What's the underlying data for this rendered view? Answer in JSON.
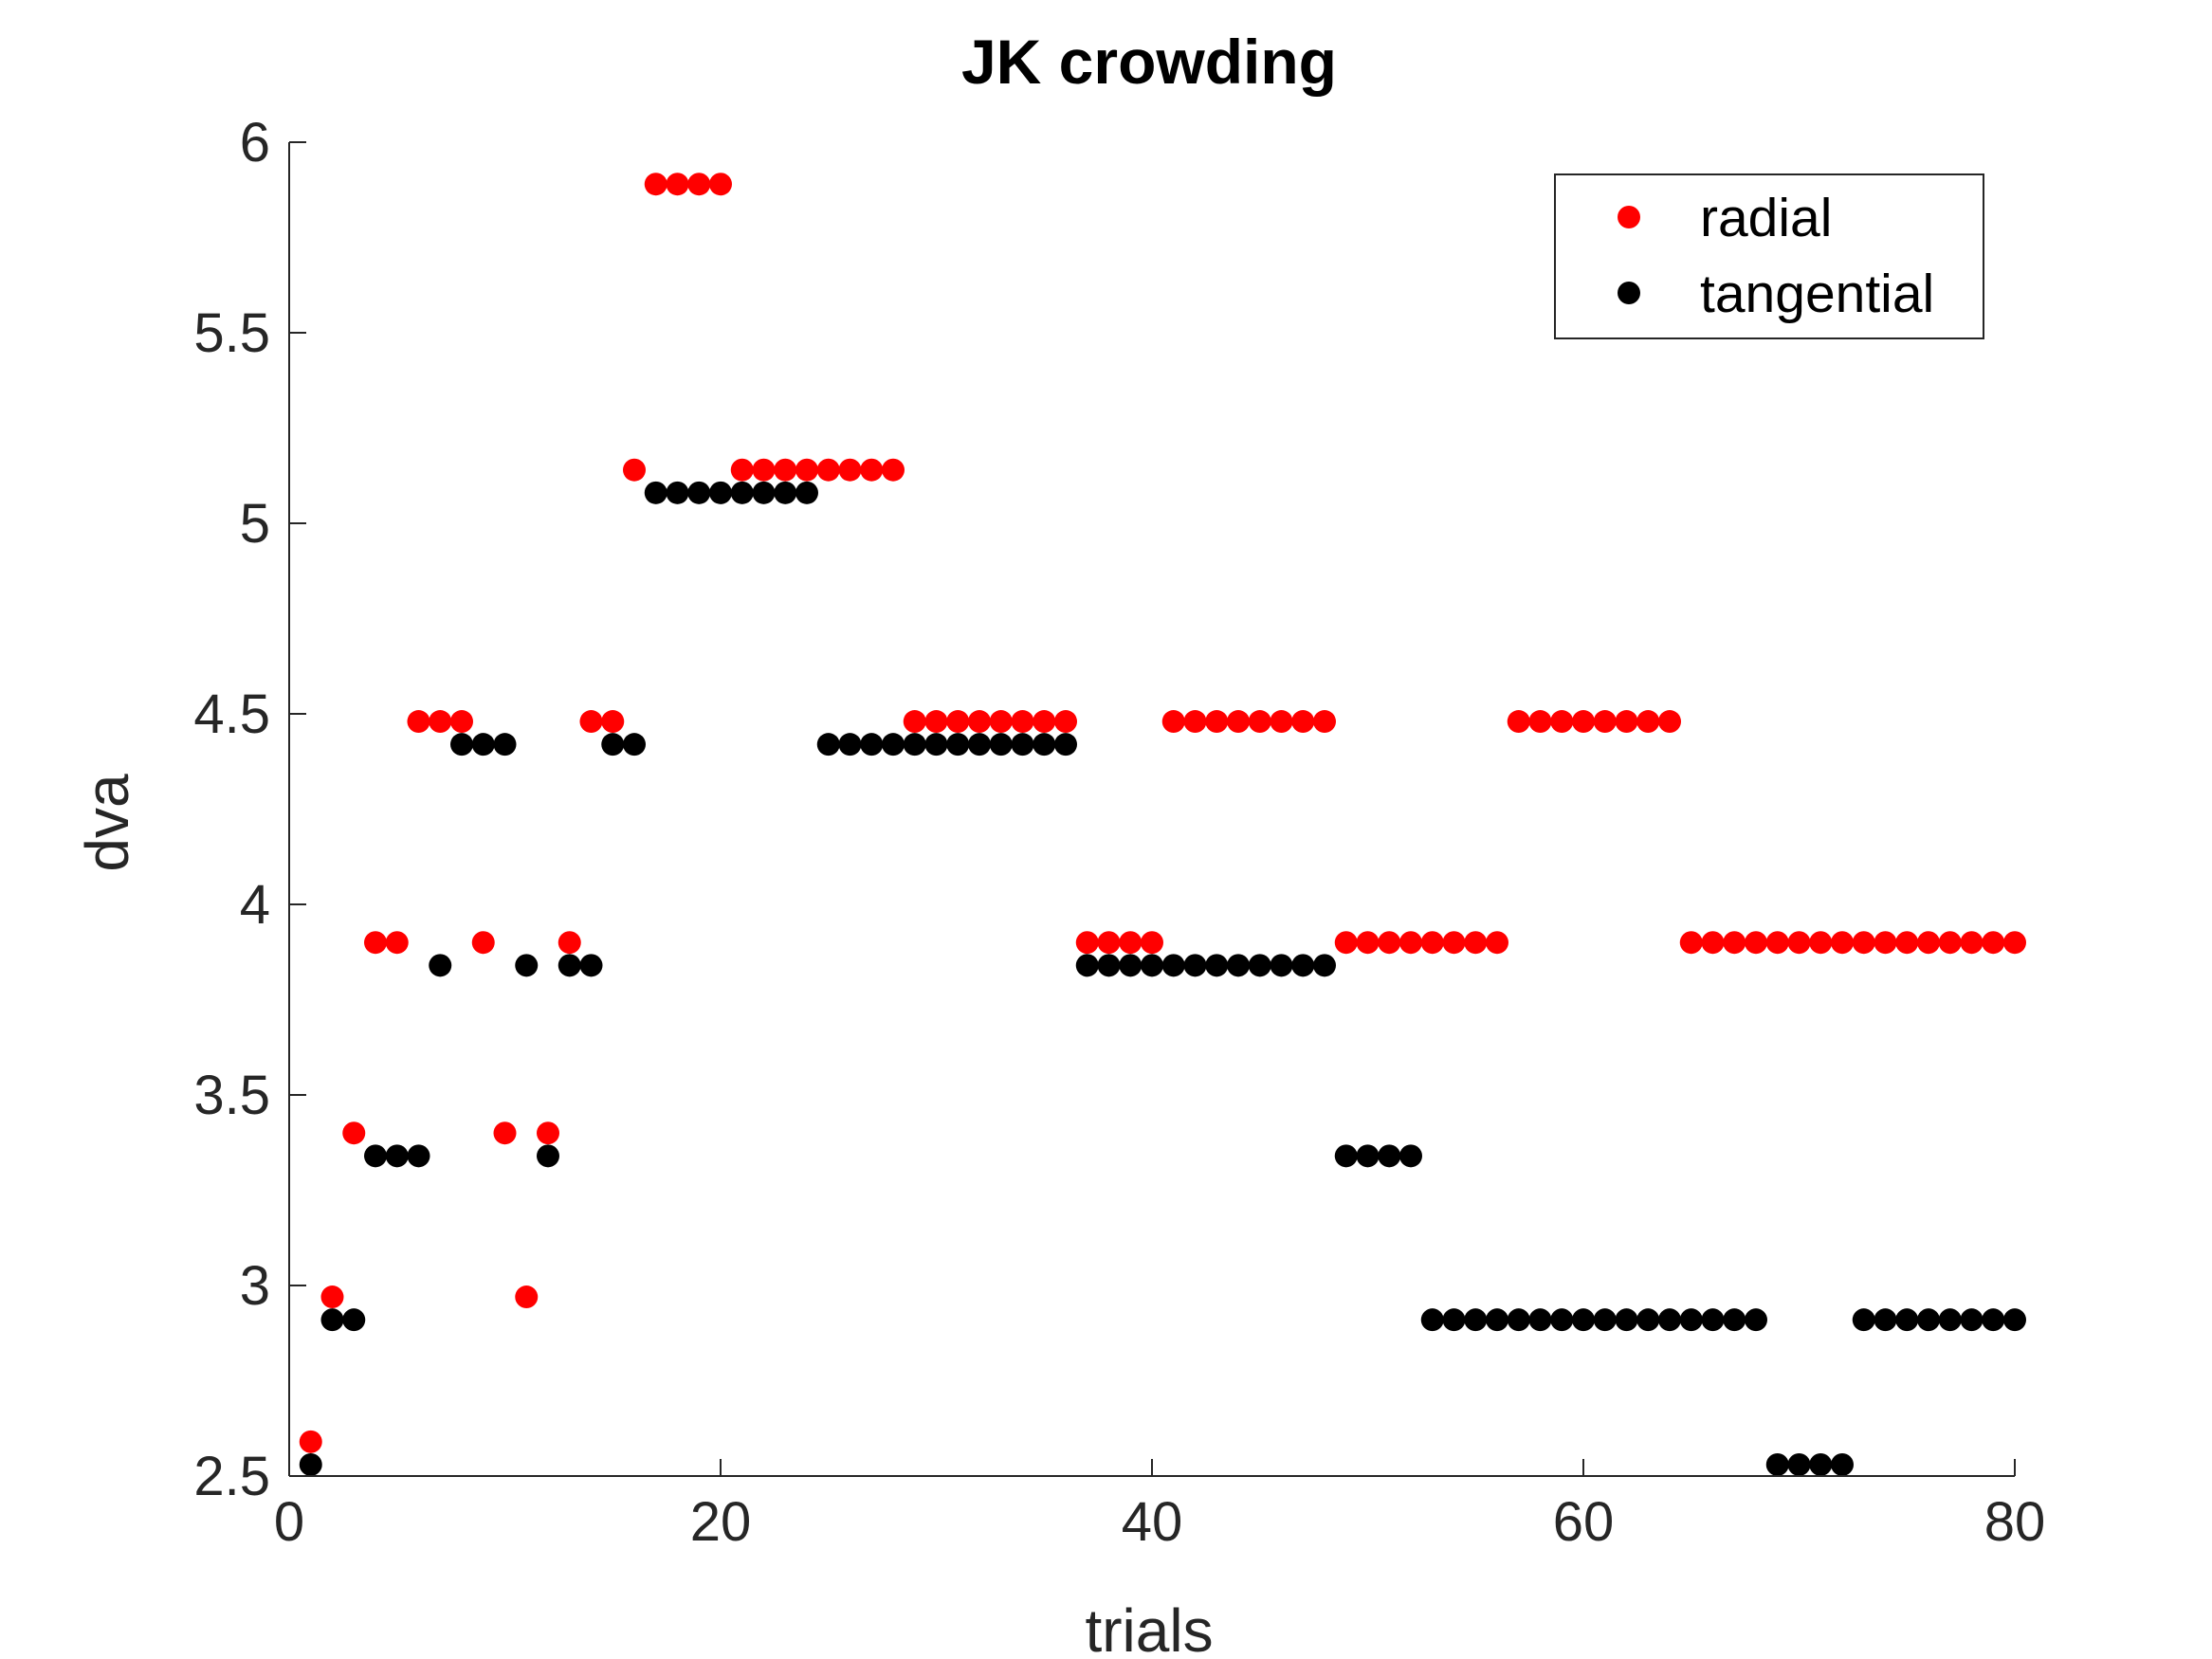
{
  "chart_data": {
    "type": "scatter",
    "title": "JK crowding",
    "xlabel": "trials",
    "ylabel": "dva",
    "xlim": [
      0,
      80
    ],
    "ylim": [
      2.5,
      6
    ],
    "xticks": [
      0,
      20,
      40,
      60,
      80
    ],
    "yticks": [
      2.5,
      3,
      3.5,
      4,
      4.5,
      5,
      5.5,
      6
    ],
    "xtick_labels": [
      "0",
      "20",
      "40",
      "60",
      "80"
    ],
    "ytick_labels": [
      "2.5",
      "3",
      "3.5",
      "4",
      "4.5",
      "5",
      "5.5",
      "6"
    ],
    "grid": false,
    "legend_position": "top-right",
    "series": [
      {
        "name": "radial",
        "color": "#ff0000",
        "x": [
          1,
          2,
          3,
          4,
          5,
          6,
          7,
          8,
          9,
          10,
          11,
          12,
          13,
          14,
          15,
          16,
          17,
          18,
          19,
          20,
          21,
          22,
          23,
          24,
          25,
          26,
          27,
          28,
          29,
          30,
          31,
          32,
          33,
          34,
          35,
          36,
          37,
          38,
          39,
          40,
          41,
          42,
          43,
          44,
          45,
          46,
          47,
          48,
          49,
          50,
          51,
          52,
          53,
          54,
          55,
          56,
          57,
          58,
          59,
          60,
          61,
          62,
          63,
          64,
          65,
          66,
          67,
          68,
          69,
          70,
          71,
          72,
          73,
          74,
          75,
          76,
          77,
          78,
          79,
          80
        ],
        "y": [
          2.59,
          2.97,
          3.4,
          3.9,
          3.9,
          4.48,
          4.48,
          4.48,
          3.9,
          3.4,
          2.97,
          3.4,
          3.9,
          4.48,
          4.48,
          5.14,
          5.89,
          5.89,
          5.89,
          5.89,
          5.14,
          5.14,
          5.14,
          5.14,
          5.14,
          5.14,
          5.14,
          5.14,
          4.48,
          4.48,
          4.48,
          4.48,
          4.48,
          4.48,
          4.48,
          4.48,
          3.9,
          3.9,
          3.9,
          3.9,
          4.48,
          4.48,
          4.48,
          4.48,
          4.48,
          4.48,
          4.48,
          4.48,
          3.9,
          3.9,
          3.9,
          3.9,
          3.9,
          3.9,
          3.9,
          3.9,
          4.48,
          4.48,
          4.48,
          4.48,
          4.48,
          4.48,
          4.48,
          4.48,
          3.9,
          3.9,
          3.9,
          3.9,
          3.9,
          3.9,
          3.9,
          3.9,
          3.9,
          3.9,
          3.9,
          3.9,
          3.9,
          3.9,
          3.9,
          3.9
        ]
      },
      {
        "name": "tangential",
        "color": "#000000",
        "x": [
          1,
          2,
          3,
          4,
          5,
          6,
          7,
          8,
          9,
          10,
          11,
          12,
          13,
          14,
          15,
          16,
          17,
          18,
          19,
          20,
          21,
          22,
          23,
          24,
          25,
          26,
          27,
          28,
          29,
          30,
          31,
          32,
          33,
          34,
          35,
          36,
          37,
          38,
          39,
          40,
          41,
          42,
          43,
          44,
          45,
          46,
          47,
          48,
          49,
          50,
          51,
          52,
          53,
          54,
          55,
          56,
          57,
          58,
          59,
          60,
          61,
          62,
          63,
          64,
          65,
          66,
          67,
          68,
          69,
          70,
          71,
          72,
          73,
          74,
          75,
          76,
          77,
          78,
          79,
          80
        ],
        "y": [
          2.53,
          2.91,
          2.91,
          3.34,
          3.34,
          3.34,
          3.84,
          4.42,
          4.42,
          4.42,
          3.84,
          3.34,
          3.84,
          3.84,
          4.42,
          4.42,
          5.08,
          5.08,
          5.08,
          5.08,
          5.08,
          5.08,
          5.08,
          5.08,
          4.42,
          4.42,
          4.42,
          4.42,
          4.42,
          4.42,
          4.42,
          4.42,
          4.42,
          4.42,
          4.42,
          4.42,
          3.84,
          3.84,
          3.84,
          3.84,
          3.84,
          3.84,
          3.84,
          3.84,
          3.84,
          3.84,
          3.84,
          3.84,
          3.34,
          3.34,
          3.34,
          3.34,
          2.91,
          2.91,
          2.91,
          2.91,
          2.91,
          2.91,
          2.91,
          2.91,
          2.91,
          2.91,
          2.91,
          2.91,
          2.91,
          2.91,
          2.91,
          2.91,
          2.53,
          2.53,
          2.53,
          2.53,
          2.91,
          2.91,
          2.91,
          2.91,
          2.91,
          2.91,
          2.91,
          2.91
        ]
      }
    ]
  }
}
